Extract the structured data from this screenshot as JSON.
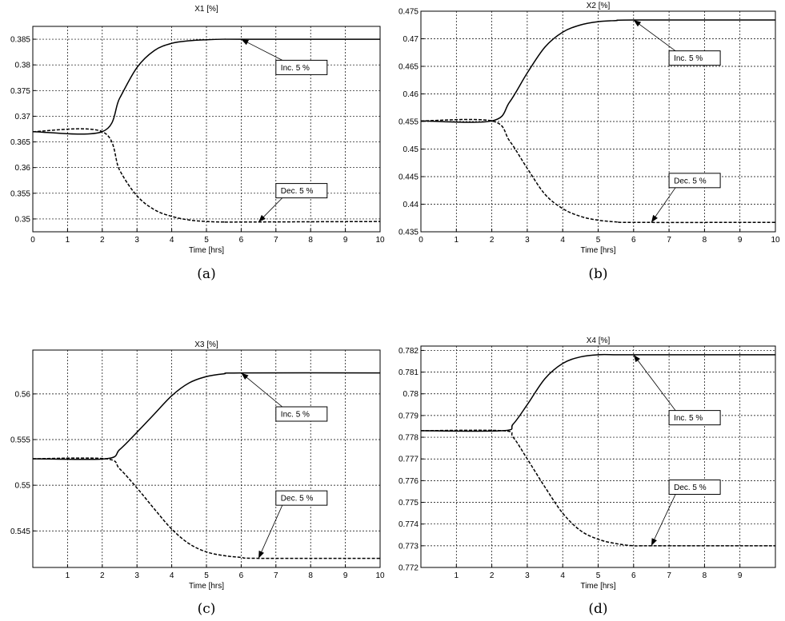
{
  "chart_data": [
    {
      "id": "a",
      "type": "line",
      "title": "X1 [%]",
      "xlabel": "Time [hrs]",
      "caption": "(a)",
      "xlim": [
        0,
        10
      ],
      "ylim": [
        0.3475,
        0.3875
      ],
      "xticks": [
        0,
        1,
        2,
        3,
        4,
        5,
        6,
        7,
        8,
        9,
        10
      ],
      "yticks": [
        0.35,
        0.355,
        0.36,
        0.365,
        0.37,
        0.375,
        0.38,
        0.385
      ],
      "ytick_labels": [
        "0.35",
        "0.355",
        "0.36",
        "0.365",
        "0.37",
        "0.375",
        "0.38",
        "0.385"
      ],
      "grid": true,
      "series": [
        {
          "style": "solid",
          "x": [
            0,
            2,
            2.5,
            3,
            3.5,
            4,
            4.5,
            5,
            5.5,
            6,
            10
          ],
          "y": [
            0.367,
            0.367,
            0.3735,
            0.3795,
            0.3828,
            0.3842,
            0.3847,
            0.3849,
            0.385,
            0.385,
            0.385
          ]
        },
        {
          "style": "dashed",
          "x": [
            0,
            2,
            2.5,
            3,
            3.5,
            4,
            4.5,
            5,
            5.5,
            6,
            10
          ],
          "y": [
            0.367,
            0.367,
            0.3595,
            0.3545,
            0.3518,
            0.3505,
            0.3498,
            0.3495,
            0.3494,
            0.3494,
            0.3495
          ]
        }
      ],
      "annotations": [
        {
          "text": "Inc. 5 %",
          "box": [
            7,
            0.3795
          ],
          "target": [
            6,
            0.385
          ]
        },
        {
          "text": "Dec. 5 %",
          "box": [
            7,
            0.3555
          ],
          "target": [
            6.5,
            0.3494
          ]
        }
      ]
    },
    {
      "id": "b",
      "type": "line",
      "title": "X2 [%]",
      "xlabel": "Time [hrs]",
      "caption": "(b)",
      "xlim": [
        0,
        10
      ],
      "ylim": [
        0.435,
        0.475
      ],
      "xticks": [
        0,
        1,
        2,
        3,
        4,
        5,
        6,
        7,
        8,
        9,
        10
      ],
      "yticks": [
        0.435,
        0.44,
        0.445,
        0.45,
        0.455,
        0.46,
        0.465,
        0.47,
        0.475
      ],
      "ytick_labels": [
        "0.435",
        "0.44",
        "0.445",
        "0.45",
        "0.455",
        "0.46",
        "0.465",
        "0.47",
        "0.475"
      ],
      "grid": true,
      "series": [
        {
          "style": "solid",
          "x": [
            0,
            2,
            2.5,
            3,
            3.5,
            4,
            4.5,
            5,
            5.5,
            6,
            10
          ],
          "y": [
            0.4551,
            0.4551,
            0.4585,
            0.4638,
            0.4685,
            0.4712,
            0.4725,
            0.4731,
            0.4733,
            0.4734,
            0.4734
          ]
        },
        {
          "style": "dashed",
          "x": [
            0,
            2,
            2.5,
            3,
            3.5,
            4,
            4.5,
            5,
            5.5,
            6,
            10
          ],
          "y": [
            0.4551,
            0.4551,
            0.4515,
            0.4465,
            0.4418,
            0.4392,
            0.4378,
            0.4371,
            0.4368,
            0.4367,
            0.4367
          ]
        }
      ],
      "annotations": [
        {
          "text": "Inc. 5 %",
          "box": [
            7,
            0.4665
          ],
          "target": [
            6,
            0.4734
          ]
        },
        {
          "text": "Dec. 5 %",
          "box": [
            7,
            0.4443
          ],
          "target": [
            6.5,
            0.4367
          ]
        }
      ]
    },
    {
      "id": "c",
      "type": "line",
      "title": "X3 [%]",
      "xlabel": "Time [hrs]",
      "caption": "(c)",
      "xlim": [
        0,
        10
      ],
      "ylim": [
        0.541,
        0.5648
      ],
      "xticks": [
        1,
        2,
        3,
        4,
        5,
        6,
        7,
        8,
        9,
        10
      ],
      "yticks": [
        0.545,
        0.55,
        0.555,
        0.56
      ],
      "ytick_labels": [
        "0.545",
        "0.55",
        "0.555",
        "0.56"
      ],
      "grid": true,
      "series": [
        {
          "style": "solid",
          "x": [
            0,
            2.1,
            2.5,
            3,
            3.5,
            4,
            4.5,
            5,
            5.5,
            6,
            10
          ],
          "y": [
            0.5529,
            0.5529,
            0.5539,
            0.5558,
            0.5578,
            0.5598,
            0.5612,
            0.5619,
            0.5622,
            0.5623,
            0.5623
          ]
        },
        {
          "style": "dashed",
          "x": [
            0,
            2.1,
            2.5,
            3,
            3.5,
            4,
            4.5,
            5,
            5.5,
            6,
            6.5,
            10
          ],
          "y": [
            0.5529,
            0.5529,
            0.5518,
            0.5497,
            0.5474,
            0.5452,
            0.5436,
            0.5427,
            0.5423,
            0.5421,
            0.542,
            0.542
          ]
        }
      ],
      "annotations": [
        {
          "text": "Inc. 5 %",
          "box": [
            7,
            0.5578
          ],
          "target": [
            6,
            0.5623
          ]
        },
        {
          "text": "Dec. 5 %",
          "box": [
            7,
            0.5486
          ],
          "target": [
            6.5,
            0.542
          ]
        }
      ]
    },
    {
      "id": "d",
      "type": "line",
      "title": "X4 [%]",
      "xlabel": "Time [hrs]",
      "caption": "(d)",
      "xlim": [
        0,
        10
      ],
      "ylim": [
        0.772,
        0.7822
      ],
      "xticks": [
        1,
        2,
        3,
        4,
        5,
        6,
        7,
        8,
        9
      ],
      "yticks": [
        0.772,
        0.773,
        0.774,
        0.775,
        0.776,
        0.777,
        0.778,
        0.779,
        0.78,
        0.781,
        0.782
      ],
      "ytick_labels": [
        "0.772",
        "0.773",
        "0.774",
        "0.775",
        "0.776",
        "0.777",
        "0.778",
        "0.779",
        "0.78",
        "0.781",
        "0.782"
      ],
      "grid": true,
      "series": [
        {
          "style": "solid",
          "x": [
            0,
            2.3,
            2.6,
            3,
            3.5,
            4,
            4.5,
            5,
            5.5,
            6,
            10
          ],
          "y": [
            0.7783,
            0.7783,
            0.7786,
            0.7795,
            0.7807,
            0.7814,
            0.7817,
            0.7818,
            0.7818,
            0.7818,
            0.7818
          ]
        },
        {
          "style": "dashed",
          "x": [
            0,
            2.3,
            2.6,
            3,
            3.5,
            4,
            4.5,
            5,
            5.5,
            6,
            6.5,
            10
          ],
          "y": [
            0.7783,
            0.7783,
            0.778,
            0.777,
            0.7757,
            0.7745,
            0.7737,
            0.7733,
            0.7731,
            0.773,
            0.773,
            0.773
          ]
        }
      ],
      "annotations": [
        {
          "text": "Inc. 5 %",
          "box": [
            7,
            0.7789
          ],
          "target": [
            6,
            0.7818
          ]
        },
        {
          "text": "Dec. 5 %",
          "box": [
            7,
            0.7757
          ],
          "target": [
            6.5,
            0.773
          ]
        }
      ]
    }
  ]
}
